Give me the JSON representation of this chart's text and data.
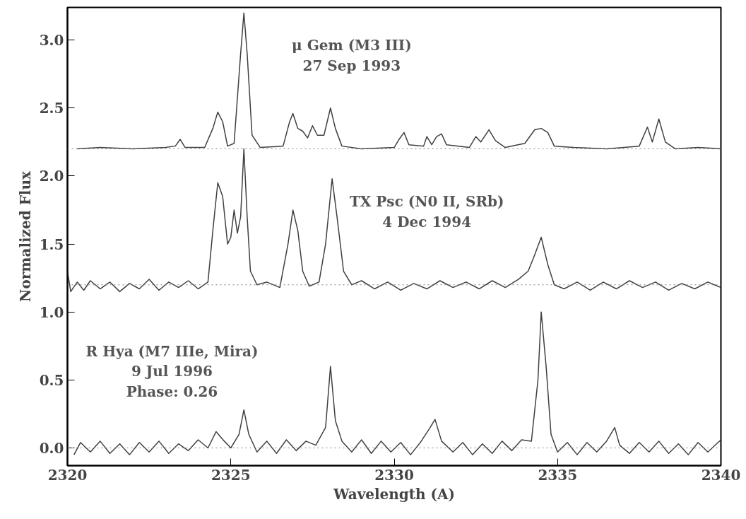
{
  "chart_data": {
    "type": "line",
    "xlabel": "Wavelength (A)",
    "ylabel": "Normalized Flux",
    "xlim": [
      2320,
      2340
    ],
    "ylim": [
      -0.13,
      3.24
    ],
    "xticks": [
      2320,
      2325,
      2330,
      2335,
      2340
    ],
    "yticks": [
      {
        "value": 0,
        "label": "0.0"
      },
      0.5,
      {
        "value": 1,
        "label": "1.0"
      },
      1.5,
      {
        "value": 2,
        "label": "2.0"
      },
      2.5,
      {
        "value": 3,
        "label": "3.0"
      }
    ],
    "grid": false,
    "marker": "none",
    "line_style": "solid",
    "ref_lines": [
      {
        "axis": "y",
        "value": 2.2,
        "color": "#808080",
        "line_style": "dotted"
      },
      {
        "axis": "y",
        "value": 1.2,
        "color": "#808080",
        "line_style": "dotted"
      },
      {
        "axis": "y",
        "value": 0,
        "color": "#808080",
        "line_style": "dotted"
      }
    ],
    "series": [
      {
        "name": "μ Gem (M3 III)\n27 Sep 1993",
        "color": "#404040",
        "x": [
          2320.3,
          2321,
          2322,
          2323,
          2323.3,
          2323.45,
          2323.6,
          2324.2,
          2324.45,
          2324.6,
          2324.75,
          2324.9,
          2325.1,
          2325.3,
          2325.4,
          2325.5,
          2325.65,
          2325.9,
          2326.6,
          2326.8,
          2326.9,
          2327.05,
          2327.2,
          2327.35,
          2327.5,
          2327.65,
          2327.85,
          2328.05,
          2328.2,
          2328.4,
          2329,
          2330,
          2330.15,
          2330.3,
          2330.45,
          2330.9,
          2331.0,
          2331.15,
          2331.3,
          2331.45,
          2331.6,
          2332.3,
          2332.5,
          2332.65,
          2332.9,
          2333.1,
          2333.4,
          2334.0,
          2334.3,
          2334.5,
          2334.7,
          2334.9,
          2335.5,
          2336.5,
          2337.5,
          2337.75,
          2337.9,
          2338.1,
          2338.3,
          2338.6,
          2339.3,
          2340
        ],
        "values": [
          2.2,
          2.21,
          2.2,
          2.21,
          2.22,
          2.27,
          2.21,
          2.21,
          2.35,
          2.47,
          2.4,
          2.22,
          2.24,
          2.9,
          3.2,
          2.9,
          2.3,
          2.21,
          2.22,
          2.4,
          2.46,
          2.35,
          2.33,
          2.28,
          2.37,
          2.3,
          2.3,
          2.5,
          2.35,
          2.22,
          2.2,
          2.21,
          2.27,
          2.32,
          2.23,
          2.22,
          2.29,
          2.23,
          2.29,
          2.31,
          2.23,
          2.21,
          2.29,
          2.25,
          2.34,
          2.26,
          2.21,
          2.24,
          2.34,
          2.35,
          2.32,
          2.22,
          2.21,
          2.2,
          2.22,
          2.36,
          2.25,
          2.42,
          2.25,
          2.2,
          2.21,
          2.2
        ]
      },
      {
        "name": "TX Psc (N0 II, SRb)\n4 Dec 1994",
        "color": "#404040",
        "x": [
          2320,
          2320.1,
          2320.3,
          2320.5,
          2320.7,
          2321,
          2321.3,
          2321.6,
          2321.9,
          2322.2,
          2322.5,
          2322.8,
          2323.1,
          2323.4,
          2323.7,
          2324.0,
          2324.3,
          2324.45,
          2324.6,
          2324.75,
          2324.9,
          2325.0,
          2325.1,
          2325.2,
          2325.3,
          2325.4,
          2325.5,
          2325.6,
          2325.8,
          2326.1,
          2326.5,
          2326.75,
          2326.9,
          2327.05,
          2327.2,
          2327.4,
          2327.7,
          2327.9,
          2328.1,
          2328.25,
          2328.45,
          2328.7,
          2329,
          2329.4,
          2329.8,
          2330.2,
          2330.6,
          2331,
          2331.4,
          2331.8,
          2332.2,
          2332.6,
          2333,
          2333.4,
          2333.8,
          2334.1,
          2334.3,
          2334.5,
          2334.7,
          2334.9,
          2335.2,
          2335.6,
          2336,
          2336.4,
          2336.8,
          2337.2,
          2337.6,
          2338,
          2338.4,
          2338.8,
          2339.2,
          2339.6,
          2340
        ],
        "values": [
          1.3,
          1.15,
          1.22,
          1.16,
          1.23,
          1.17,
          1.22,
          1.15,
          1.21,
          1.17,
          1.24,
          1.16,
          1.22,
          1.18,
          1.23,
          1.17,
          1.22,
          1.6,
          1.95,
          1.85,
          1.5,
          1.55,
          1.75,
          1.58,
          1.7,
          2.2,
          1.7,
          1.3,
          1.2,
          1.22,
          1.18,
          1.5,
          1.75,
          1.6,
          1.3,
          1.19,
          1.22,
          1.5,
          1.98,
          1.7,
          1.3,
          1.2,
          1.23,
          1.17,
          1.22,
          1.16,
          1.21,
          1.17,
          1.23,
          1.18,
          1.22,
          1.17,
          1.23,
          1.18,
          1.24,
          1.3,
          1.42,
          1.55,
          1.35,
          1.2,
          1.17,
          1.22,
          1.16,
          1.22,
          1.17,
          1.23,
          1.18,
          1.22,
          1.16,
          1.21,
          1.17,
          1.22,
          1.18
        ]
      },
      {
        "name": "R Hya (M7 IIIe, Mira)\n9 Jul 1996\nPhase: 0.26",
        "color": "#404040",
        "x": [
          2320.2,
          2320.4,
          2320.7,
          2321,
          2321.3,
          2321.6,
          2321.9,
          2322.2,
          2322.5,
          2322.8,
          2323.1,
          2323.4,
          2323.7,
          2324,
          2324.3,
          2324.55,
          2324.8,
          2325.0,
          2325.25,
          2325.4,
          2325.55,
          2325.8,
          2326.1,
          2326.4,
          2326.7,
          2327.0,
          2327.3,
          2327.6,
          2327.9,
          2328.05,
          2328.2,
          2328.4,
          2328.7,
          2329,
          2329.3,
          2329.6,
          2329.9,
          2330.2,
          2330.5,
          2330.8,
          2331.1,
          2331.25,
          2331.45,
          2331.8,
          2332.1,
          2332.4,
          2332.7,
          2333,
          2333.3,
          2333.6,
          2333.9,
          2334.2,
          2334.4,
          2334.5,
          2334.65,
          2334.8,
          2335,
          2335.3,
          2335.6,
          2335.9,
          2336.2,
          2336.5,
          2336.75,
          2336.9,
          2337.2,
          2337.5,
          2337.8,
          2338.1,
          2338.4,
          2338.7,
          2339,
          2339.3,
          2339.6,
          2340
        ],
        "values": [
          -0.05,
          0.04,
          -0.03,
          0.05,
          -0.04,
          0.03,
          -0.05,
          0.04,
          -0.03,
          0.05,
          -0.04,
          0.03,
          -0.02,
          0.06,
          0.0,
          0.12,
          0.05,
          0.0,
          0.1,
          0.28,
          0.1,
          -0.03,
          0.05,
          -0.04,
          0.06,
          -0.02,
          0.05,
          0.02,
          0.15,
          0.6,
          0.2,
          0.05,
          -0.03,
          0.06,
          -0.04,
          0.05,
          -0.03,
          0.04,
          -0.05,
          0.04,
          0.15,
          0.21,
          0.05,
          -0.03,
          0.04,
          -0.05,
          0.03,
          -0.04,
          0.05,
          -0.02,
          0.06,
          0.05,
          0.5,
          1.0,
          0.6,
          0.1,
          -0.03,
          0.04,
          -0.05,
          0.04,
          -0.03,
          0.05,
          0.15,
          0.02,
          -0.04,
          0.04,
          -0.03,
          0.05,
          -0.04,
          0.03,
          -0.05,
          0.04,
          -0.03,
          0.06
        ]
      }
    ]
  }
}
